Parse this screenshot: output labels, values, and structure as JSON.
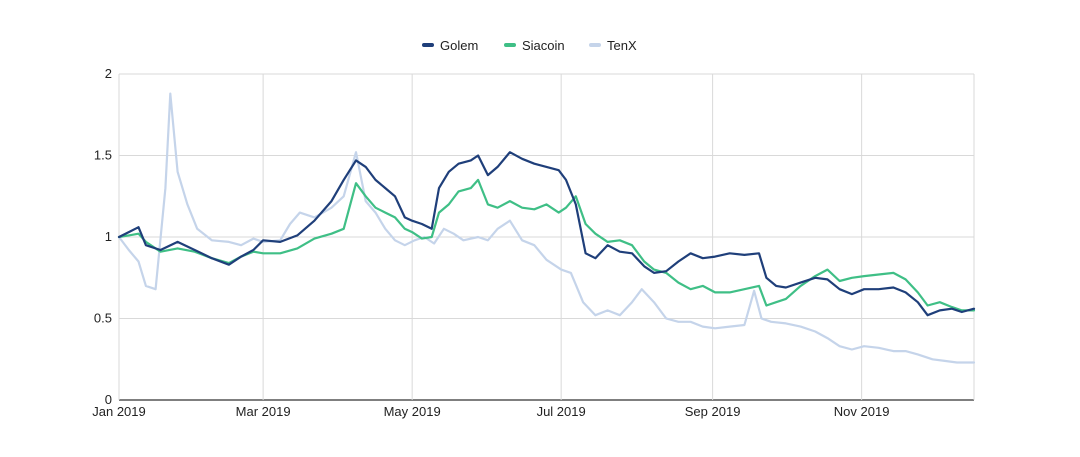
{
  "chart_data": {
    "type": "line",
    "title": "",
    "xlabel": "",
    "ylabel": "",
    "x_range": [
      "2019-01-01",
      "2019-12-17"
    ],
    "ylim": [
      0,
      2
    ],
    "y_ticks": [
      0,
      0.5,
      1,
      1.5,
      2
    ],
    "y_tick_labels": [
      "0",
      "0.5",
      "1",
      "1.5",
      "2"
    ],
    "x_ticks": [
      "2019-01-01",
      "2019-03-01",
      "2019-05-01",
      "2019-07-01",
      "2019-09-01",
      "2019-11-01"
    ],
    "x_tick_labels": [
      "Jan 2019",
      "Mar 2019",
      "May 2019",
      "Jul 2019",
      "Sep 2019",
      "Nov 2019"
    ],
    "grid": true,
    "legend_position": "top-center",
    "series": [
      {
        "name": "Golem",
        "color": "#1f3f7a",
        "points": [
          [
            "2019-01-01",
            1.0
          ],
          [
            "2019-01-05",
            1.03
          ],
          [
            "2019-01-09",
            1.06
          ],
          [
            "2019-01-12",
            0.95
          ],
          [
            "2019-01-18",
            0.92
          ],
          [
            "2019-01-25",
            0.97
          ],
          [
            "2019-02-01",
            0.92
          ],
          [
            "2019-02-08",
            0.87
          ],
          [
            "2019-02-15",
            0.83
          ],
          [
            "2019-02-20",
            0.88
          ],
          [
            "2019-02-25",
            0.92
          ],
          [
            "2019-03-01",
            0.98
          ],
          [
            "2019-03-08",
            0.97
          ],
          [
            "2019-03-15",
            1.01
          ],
          [
            "2019-03-22",
            1.1
          ],
          [
            "2019-03-29",
            1.22
          ],
          [
            "2019-04-03",
            1.35
          ],
          [
            "2019-04-08",
            1.47
          ],
          [
            "2019-04-12",
            1.43
          ],
          [
            "2019-04-16",
            1.35
          ],
          [
            "2019-04-20",
            1.3
          ],
          [
            "2019-04-24",
            1.25
          ],
          [
            "2019-04-28",
            1.12
          ],
          [
            "2019-05-01",
            1.1
          ],
          [
            "2019-05-05",
            1.08
          ],
          [
            "2019-05-09",
            1.05
          ],
          [
            "2019-05-12",
            1.3
          ],
          [
            "2019-05-16",
            1.4
          ],
          [
            "2019-05-20",
            1.45
          ],
          [
            "2019-05-25",
            1.47
          ],
          [
            "2019-05-28",
            1.5
          ],
          [
            "2019-06-01",
            1.38
          ],
          [
            "2019-06-05",
            1.43
          ],
          [
            "2019-06-10",
            1.52
          ],
          [
            "2019-06-15",
            1.48
          ],
          [
            "2019-06-20",
            1.45
          ],
          [
            "2019-06-25",
            1.43
          ],
          [
            "2019-06-30",
            1.41
          ],
          [
            "2019-07-03",
            1.35
          ],
          [
            "2019-07-07",
            1.2
          ],
          [
            "2019-07-11",
            0.9
          ],
          [
            "2019-07-15",
            0.87
          ],
          [
            "2019-07-20",
            0.95
          ],
          [
            "2019-07-25",
            0.91
          ],
          [
            "2019-07-30",
            0.9
          ],
          [
            "2019-08-04",
            0.82
          ],
          [
            "2019-08-08",
            0.78
          ],
          [
            "2019-08-13",
            0.79
          ],
          [
            "2019-08-18",
            0.85
          ],
          [
            "2019-08-23",
            0.9
          ],
          [
            "2019-08-28",
            0.87
          ],
          [
            "2019-09-02",
            0.88
          ],
          [
            "2019-09-08",
            0.9
          ],
          [
            "2019-09-14",
            0.89
          ],
          [
            "2019-09-20",
            0.9
          ],
          [
            "2019-09-23",
            0.75
          ],
          [
            "2019-09-27",
            0.7
          ],
          [
            "2019-10-01",
            0.69
          ],
          [
            "2019-10-07",
            0.72
          ],
          [
            "2019-10-13",
            0.75
          ],
          [
            "2019-10-18",
            0.74
          ],
          [
            "2019-10-23",
            0.68
          ],
          [
            "2019-10-28",
            0.65
          ],
          [
            "2019-11-02",
            0.68
          ],
          [
            "2019-11-08",
            0.68
          ],
          [
            "2019-11-14",
            0.69
          ],
          [
            "2019-11-19",
            0.66
          ],
          [
            "2019-11-24",
            0.6
          ],
          [
            "2019-11-28",
            0.52
          ],
          [
            "2019-12-03",
            0.55
          ],
          [
            "2019-12-08",
            0.56
          ],
          [
            "2019-12-12",
            0.54
          ],
          [
            "2019-12-17",
            0.56
          ]
        ]
      },
      {
        "name": "Siacoin",
        "color": "#3fbf86",
        "points": [
          [
            "2019-01-01",
            1.0
          ],
          [
            "2019-01-05",
            1.01
          ],
          [
            "2019-01-09",
            1.02
          ],
          [
            "2019-01-12",
            0.97
          ],
          [
            "2019-01-18",
            0.91
          ],
          [
            "2019-01-25",
            0.93
          ],
          [
            "2019-02-01",
            0.91
          ],
          [
            "2019-02-08",
            0.87
          ],
          [
            "2019-02-15",
            0.84
          ],
          [
            "2019-02-20",
            0.88
          ],
          [
            "2019-02-25",
            0.91
          ],
          [
            "2019-03-01",
            0.9
          ],
          [
            "2019-03-08",
            0.9
          ],
          [
            "2019-03-15",
            0.93
          ],
          [
            "2019-03-22",
            0.99
          ],
          [
            "2019-03-29",
            1.02
          ],
          [
            "2019-04-03",
            1.05
          ],
          [
            "2019-04-08",
            1.33
          ],
          [
            "2019-04-12",
            1.25
          ],
          [
            "2019-04-16",
            1.18
          ],
          [
            "2019-04-20",
            1.15
          ],
          [
            "2019-04-24",
            1.12
          ],
          [
            "2019-04-28",
            1.05
          ],
          [
            "2019-05-01",
            1.03
          ],
          [
            "2019-05-05",
            0.99
          ],
          [
            "2019-05-09",
            1.0
          ],
          [
            "2019-05-12",
            1.15
          ],
          [
            "2019-05-16",
            1.2
          ],
          [
            "2019-05-20",
            1.28
          ],
          [
            "2019-05-25",
            1.3
          ],
          [
            "2019-05-28",
            1.35
          ],
          [
            "2019-06-01",
            1.2
          ],
          [
            "2019-06-05",
            1.18
          ],
          [
            "2019-06-10",
            1.22
          ],
          [
            "2019-06-15",
            1.18
          ],
          [
            "2019-06-20",
            1.17
          ],
          [
            "2019-06-25",
            1.2
          ],
          [
            "2019-06-30",
            1.15
          ],
          [
            "2019-07-03",
            1.18
          ],
          [
            "2019-07-07",
            1.25
          ],
          [
            "2019-07-11",
            1.08
          ],
          [
            "2019-07-15",
            1.02
          ],
          [
            "2019-07-20",
            0.97
          ],
          [
            "2019-07-25",
            0.98
          ],
          [
            "2019-07-30",
            0.95
          ],
          [
            "2019-08-04",
            0.85
          ],
          [
            "2019-08-08",
            0.8
          ],
          [
            "2019-08-13",
            0.78
          ],
          [
            "2019-08-18",
            0.72
          ],
          [
            "2019-08-23",
            0.68
          ],
          [
            "2019-08-28",
            0.7
          ],
          [
            "2019-09-02",
            0.66
          ],
          [
            "2019-09-08",
            0.66
          ],
          [
            "2019-09-14",
            0.68
          ],
          [
            "2019-09-20",
            0.7
          ],
          [
            "2019-09-23",
            0.58
          ],
          [
            "2019-09-27",
            0.6
          ],
          [
            "2019-10-01",
            0.62
          ],
          [
            "2019-10-07",
            0.7
          ],
          [
            "2019-10-13",
            0.76
          ],
          [
            "2019-10-18",
            0.8
          ],
          [
            "2019-10-23",
            0.73
          ],
          [
            "2019-10-28",
            0.75
          ],
          [
            "2019-11-02",
            0.76
          ],
          [
            "2019-11-08",
            0.77
          ],
          [
            "2019-11-14",
            0.78
          ],
          [
            "2019-11-19",
            0.74
          ],
          [
            "2019-11-24",
            0.66
          ],
          [
            "2019-11-28",
            0.58
          ],
          [
            "2019-12-03",
            0.6
          ],
          [
            "2019-12-08",
            0.57
          ],
          [
            "2019-12-12",
            0.55
          ],
          [
            "2019-12-17",
            0.55
          ]
        ]
      },
      {
        "name": "TenX",
        "color": "#c5d4ea",
        "points": [
          [
            "2019-01-01",
            1.0
          ],
          [
            "2019-01-05",
            0.92
          ],
          [
            "2019-01-09",
            0.85
          ],
          [
            "2019-01-12",
            0.7
          ],
          [
            "2019-01-16",
            0.68
          ],
          [
            "2019-01-20",
            1.3
          ],
          [
            "2019-01-22",
            1.88
          ],
          [
            "2019-01-25",
            1.4
          ],
          [
            "2019-01-29",
            1.2
          ],
          [
            "2019-02-02",
            1.05
          ],
          [
            "2019-02-08",
            0.98
          ],
          [
            "2019-02-15",
            0.97
          ],
          [
            "2019-02-20",
            0.95
          ],
          [
            "2019-02-25",
            0.99
          ],
          [
            "2019-03-01",
            0.97
          ],
          [
            "2019-03-08",
            0.98
          ],
          [
            "2019-03-12",
            1.08
          ],
          [
            "2019-03-16",
            1.15
          ],
          [
            "2019-03-22",
            1.12
          ],
          [
            "2019-03-29",
            1.18
          ],
          [
            "2019-04-03",
            1.25
          ],
          [
            "2019-04-08",
            1.52
          ],
          [
            "2019-04-12",
            1.22
          ],
          [
            "2019-04-16",
            1.15
          ],
          [
            "2019-04-20",
            1.05
          ],
          [
            "2019-04-24",
            0.98
          ],
          [
            "2019-04-28",
            0.95
          ],
          [
            "2019-05-02",
            0.98
          ],
          [
            "2019-05-06",
            1.0
          ],
          [
            "2019-05-10",
            0.96
          ],
          [
            "2019-05-14",
            1.05
          ],
          [
            "2019-05-18",
            1.02
          ],
          [
            "2019-05-22",
            0.98
          ],
          [
            "2019-05-28",
            1.0
          ],
          [
            "2019-06-01",
            0.98
          ],
          [
            "2019-06-05",
            1.05
          ],
          [
            "2019-06-10",
            1.1
          ],
          [
            "2019-06-15",
            0.98
          ],
          [
            "2019-06-20",
            0.95
          ],
          [
            "2019-06-25",
            0.86
          ],
          [
            "2019-07-01",
            0.8
          ],
          [
            "2019-07-05",
            0.78
          ],
          [
            "2019-07-10",
            0.6
          ],
          [
            "2019-07-15",
            0.52
          ],
          [
            "2019-07-20",
            0.55
          ],
          [
            "2019-07-25",
            0.52
          ],
          [
            "2019-07-30",
            0.6
          ],
          [
            "2019-08-03",
            0.68
          ],
          [
            "2019-08-08",
            0.6
          ],
          [
            "2019-08-13",
            0.5
          ],
          [
            "2019-08-18",
            0.48
          ],
          [
            "2019-08-23",
            0.48
          ],
          [
            "2019-08-28",
            0.45
          ],
          [
            "2019-09-02",
            0.44
          ],
          [
            "2019-09-08",
            0.45
          ],
          [
            "2019-09-14",
            0.46
          ],
          [
            "2019-09-18",
            0.67
          ],
          [
            "2019-09-21",
            0.5
          ],
          [
            "2019-09-25",
            0.48
          ],
          [
            "2019-10-01",
            0.47
          ],
          [
            "2019-10-07",
            0.45
          ],
          [
            "2019-10-13",
            0.42
          ],
          [
            "2019-10-18",
            0.38
          ],
          [
            "2019-10-23",
            0.33
          ],
          [
            "2019-10-28",
            0.31
          ],
          [
            "2019-11-02",
            0.33
          ],
          [
            "2019-11-08",
            0.32
          ],
          [
            "2019-11-14",
            0.3
          ],
          [
            "2019-11-19",
            0.3
          ],
          [
            "2019-11-24",
            0.28
          ],
          [
            "2019-11-30",
            0.25
          ],
          [
            "2019-12-05",
            0.24
          ],
          [
            "2019-12-10",
            0.23
          ],
          [
            "2019-12-17",
            0.23
          ]
        ]
      }
    ]
  }
}
